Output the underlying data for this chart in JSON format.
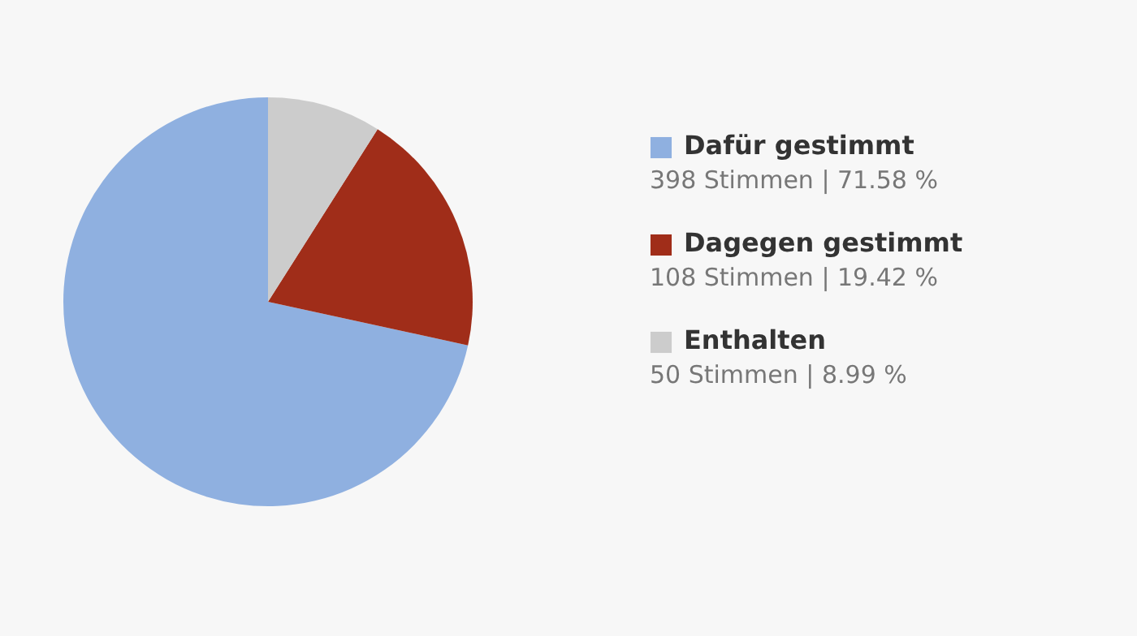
{
  "chart_data": {
    "type": "pie",
    "categories": [
      "Dafür gestimmt",
      "Dagegen gestimmt",
      "Enthalten"
    ],
    "values": [
      398,
      108,
      50
    ],
    "colors": [
      "#8fb0e0",
      "#a02d19",
      "#cccccc"
    ],
    "value_labels": [
      "398 Stimmen | 71.58 %",
      "108 Stimmen | 19.42 %",
      "50 Stimmen | 8.99 %"
    ],
    "legend": "right"
  }
}
